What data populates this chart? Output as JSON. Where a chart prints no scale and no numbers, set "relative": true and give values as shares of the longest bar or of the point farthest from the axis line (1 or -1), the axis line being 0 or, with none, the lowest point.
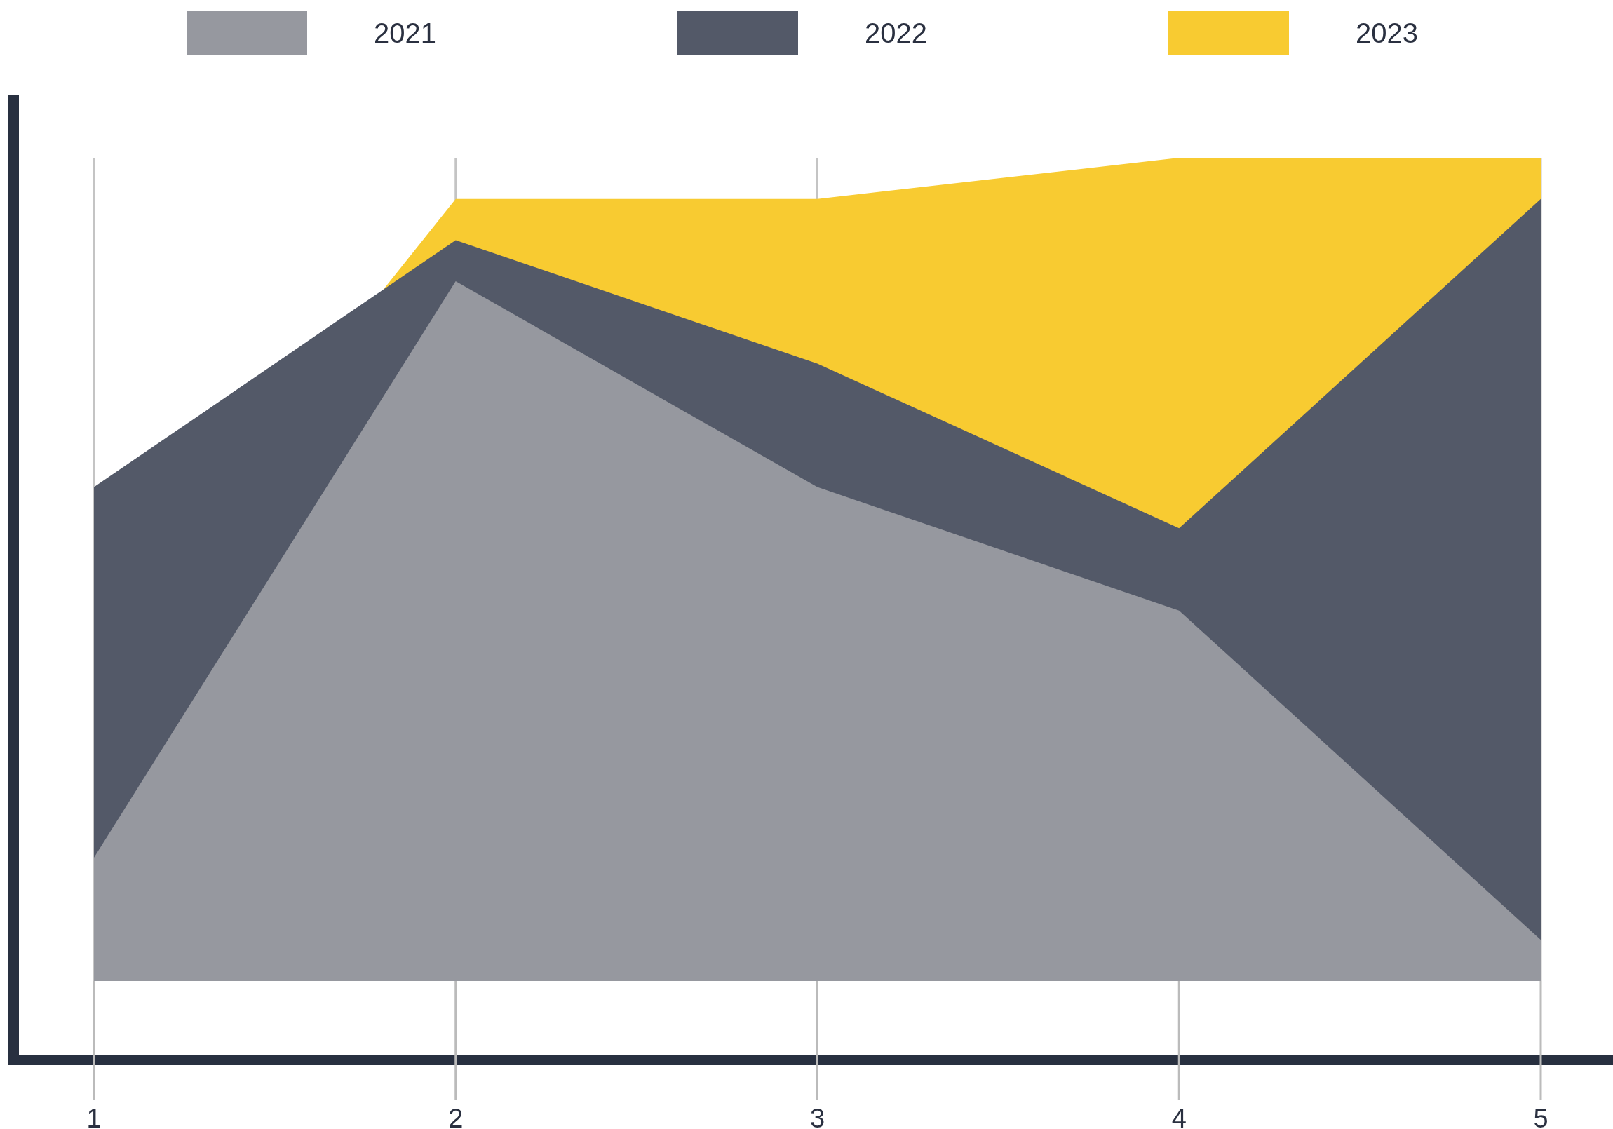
{
  "chart_data": {
    "type": "area",
    "relative": true,
    "categories": [
      "1",
      "2",
      "3",
      "4",
      "5"
    ],
    "series": [
      {
        "name": "2023",
        "color": "#f8cb31",
        "values": [
          0.4,
          0.95,
          0.95,
          1,
          1
        ]
      },
      {
        "name": "2022",
        "color": "#535968",
        "values": [
          0.6,
          0.9,
          0.75,
          0.55,
          0.95
        ]
      },
      {
        "name": "2021",
        "color": "#96989f",
        "values": [
          0.15,
          0.85,
          0.6,
          0.45,
          0.05
        ]
      }
    ],
    "grid": "x",
    "legend": "top"
  }
}
